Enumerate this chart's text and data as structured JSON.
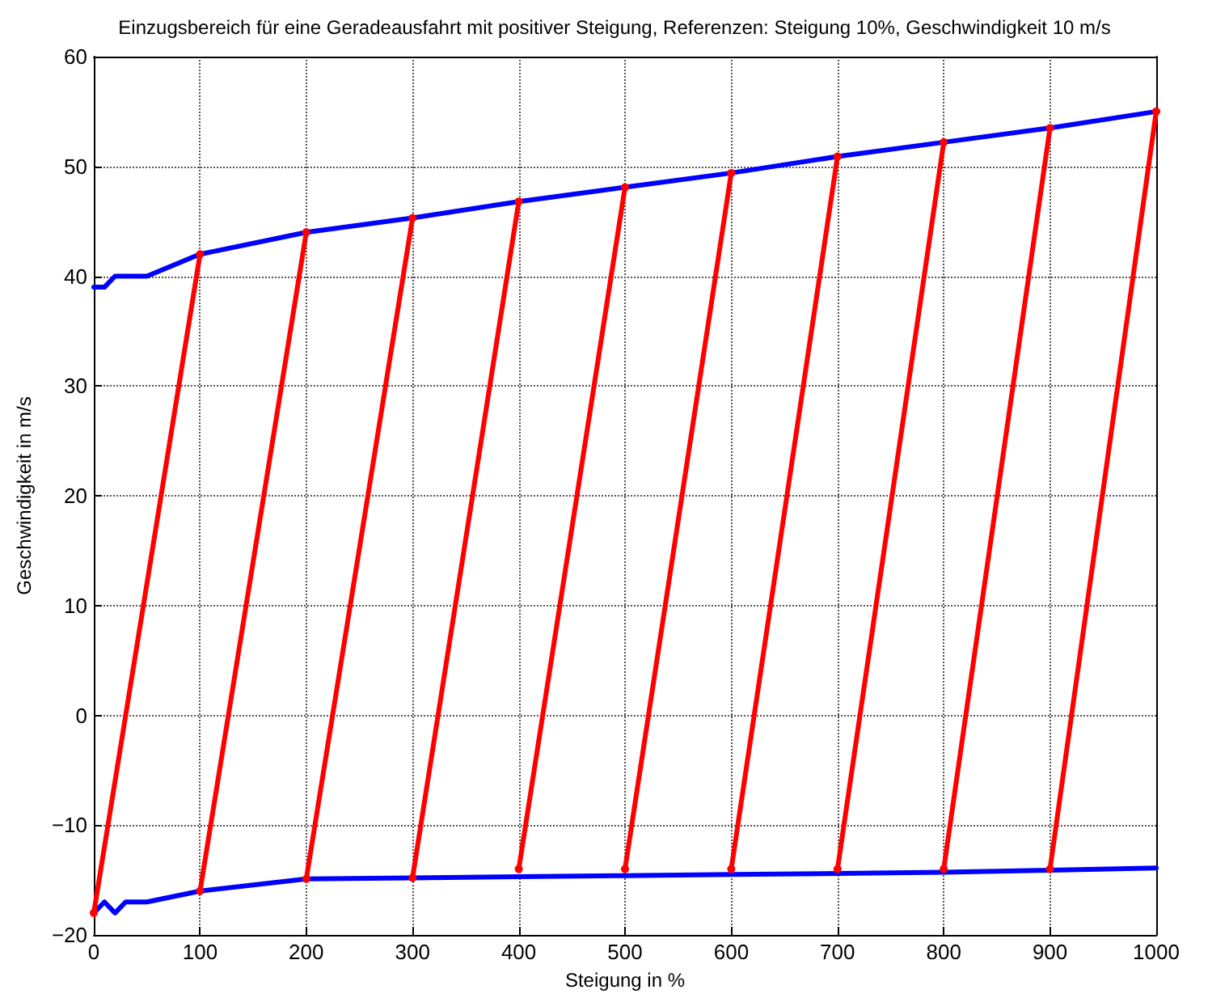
{
  "chart_data": {
    "type": "line",
    "title": "Einzugsbereich für eine Geradeausfahrt mit positiver Steigung, Referenzen: Steigung 10%, Geschwindigkeit 10 m/s",
    "xlabel": "Steigung in %",
    "ylabel": "Geschwindigkeit in m/s",
    "xlim": [
      0,
      1000
    ],
    "xticks": [
      0,
      100,
      200,
      300,
      400,
      500,
      600,
      700,
      800,
      900,
      1000
    ],
    "ylim": [
      -20,
      60
    ],
    "yticks": [
      -20,
      -10,
      0,
      10,
      20,
      30,
      40,
      50,
      60
    ],
    "grid": true,
    "line_style": "solid",
    "series": [
      {
        "color": "#0000ff",
        "marker": "none",
        "x": [
          0,
          10,
          20,
          30,
          40,
          50,
          100,
          200,
          300,
          400,
          500,
          600,
          700,
          800,
          900,
          1000
        ],
        "values": [
          39,
          39,
          40,
          40,
          40,
          40,
          42,
          44,
          45.3,
          46.8,
          48.1,
          49.4,
          50.9,
          52.2,
          53.5,
          55
        ]
      },
      {
        "color": "#0000ff",
        "marker": "none",
        "x": [
          0,
          10,
          20,
          30,
          40,
          50,
          100,
          200,
          300,
          400,
          500,
          600,
          700,
          800,
          900,
          1000
        ],
        "values": [
          -18,
          -17,
          -18,
          -17,
          -17,
          -17,
          -16,
          -14.9,
          -14.8,
          -14.7,
          -14.6,
          -14.5,
          -14.4,
          -14.3,
          -14.1,
          -13.9
        ]
      },
      {
        "color": "#ff0000",
        "marker": "circle",
        "x": [
          0,
          100
        ],
        "values": [
          -18,
          42
        ]
      },
      {
        "color": "#ff0000",
        "marker": "circle",
        "x": [
          100,
          200
        ],
        "values": [
          -16,
          44
        ]
      },
      {
        "color": "#ff0000",
        "marker": "circle",
        "x": [
          200,
          300
        ],
        "values": [
          -14.9,
          45.3
        ]
      },
      {
        "color": "#ff0000",
        "marker": "circle",
        "x": [
          300,
          400
        ],
        "values": [
          -14.8,
          46.8
        ]
      },
      {
        "color": "#ff0000",
        "marker": "circle",
        "x": [
          400,
          500
        ],
        "values": [
          -14,
          48.1
        ]
      },
      {
        "color": "#ff0000",
        "marker": "circle",
        "x": [
          500,
          600
        ],
        "values": [
          -14,
          49.4
        ]
      },
      {
        "color": "#ff0000",
        "marker": "circle",
        "x": [
          600,
          700
        ],
        "values": [
          -14,
          50.9
        ]
      },
      {
        "color": "#ff0000",
        "marker": "circle",
        "x": [
          700,
          800
        ],
        "values": [
          -14,
          52.2
        ]
      },
      {
        "color": "#ff0000",
        "marker": "circle",
        "x": [
          800,
          900
        ],
        "values": [
          -14,
          53.5
        ]
      },
      {
        "color": "#ff0000",
        "marker": "circle",
        "x": [
          900,
          1000
        ],
        "values": [
          -14,
          55
        ]
      }
    ]
  }
}
